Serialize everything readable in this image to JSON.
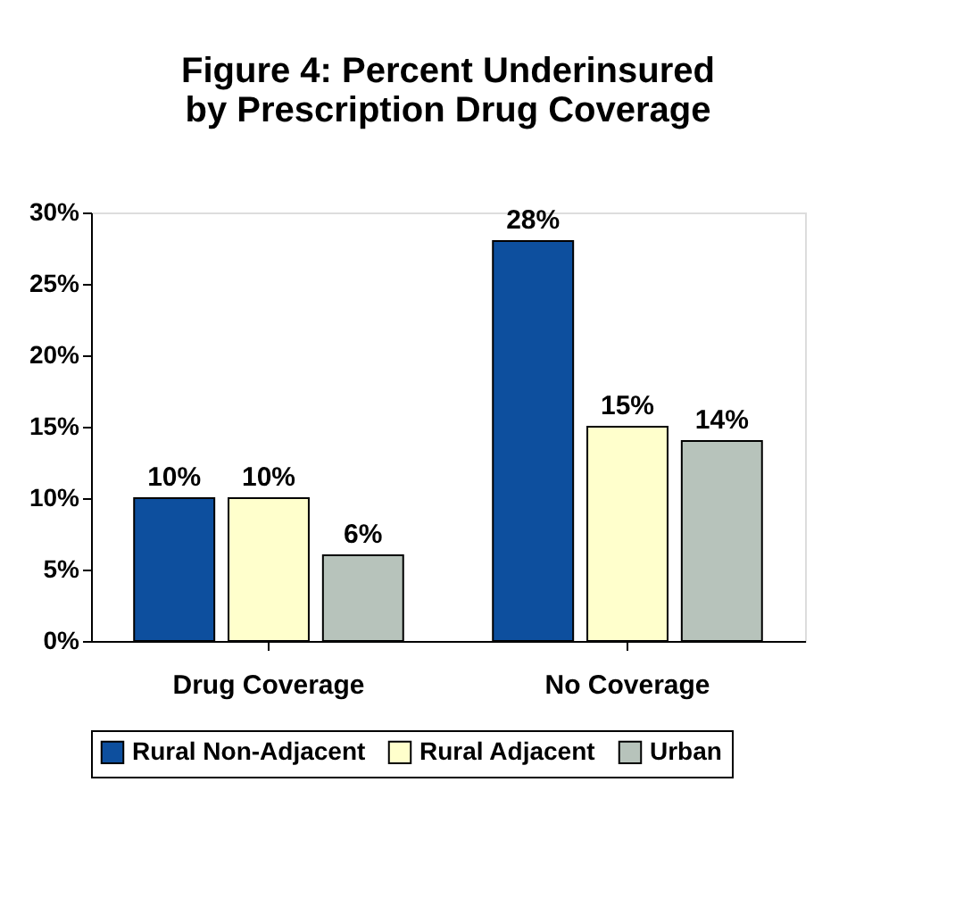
{
  "chart_data": {
    "type": "bar",
    "title": "Figure 4:  Percent Underinsured\nby Prescription Drug Coverage",
    "categories": [
      "Drug Coverage",
      "No Coverage"
    ],
    "series": [
      {
        "name": "Rural Non-Adjacent",
        "color": "#0d4f9e",
        "values": [
          10,
          28
        ],
        "value_labels": [
          "10%",
          "28%"
        ]
      },
      {
        "name": "Rural Adjacent",
        "color": "#ffffcc",
        "values": [
          10,
          15
        ],
        "value_labels": [
          "10%",
          "15%"
        ]
      },
      {
        "name": "Urban",
        "color": "#b7c3bb",
        "values": [
          6,
          14
        ],
        "value_labels": [
          "6%",
          "14%"
        ]
      }
    ],
    "ylim": [
      0,
      30
    ],
    "yticks": [
      {
        "value": 0,
        "label": "0%"
      },
      {
        "value": 5,
        "label": "5%"
      },
      {
        "value": 10,
        "label": "10%"
      },
      {
        "value": 15,
        "label": "15%"
      },
      {
        "value": 20,
        "label": "20%"
      },
      {
        "value": 25,
        "label": "25%"
      },
      {
        "value": 30,
        "label": "30%"
      }
    ],
    "grid": false,
    "legend": "bottom"
  }
}
